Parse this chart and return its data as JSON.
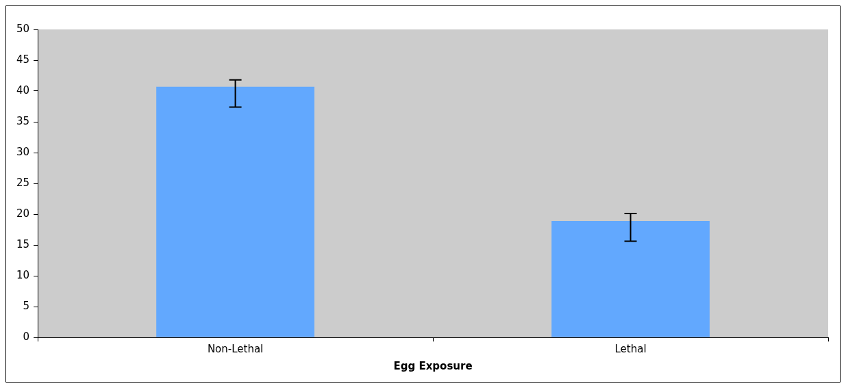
{
  "chart_data": {
    "type": "bar",
    "xlabel": "Egg Exposure",
    "categories": [
      "Non-Lethal",
      "Lethal"
    ],
    "values": [
      40.7,
      18.9
    ],
    "color": "#62a8fe",
    "errors": [
      [
        37.4,
        41.8
      ],
      [
        15.6,
        20.1
      ]
    ],
    "ylim": [
      0,
      50
    ],
    "yticks": [
      0,
      5,
      10,
      15,
      20,
      25,
      30,
      35,
      40,
      45,
      50
    ],
    "grid": false,
    "legend": false
  }
}
